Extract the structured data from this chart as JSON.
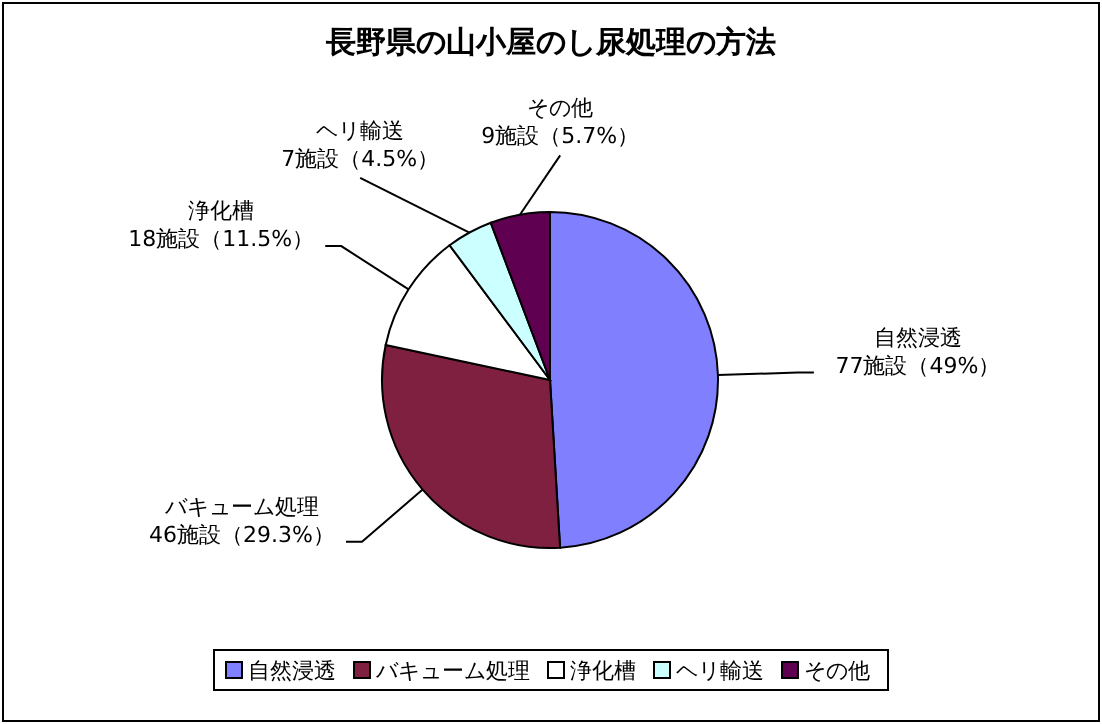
{
  "chart_data": {
    "type": "pie",
    "title": "長野県の山小屋のし尿処理の方法",
    "categories": [
      "自然浸透",
      "バキューム処理",
      "浄化槽",
      "ヘリ輸送",
      "その他"
    ],
    "values": [
      77,
      46,
      18,
      7,
      9
    ],
    "colors": [
      "#8080ff",
      "#802040",
      "#ffffff",
      "#ccffff",
      "#600050"
    ],
    "value_labels": [
      "77施設（49%）",
      "46施設（29.3%）",
      "18施設（11.5%）",
      "7施設（4.5%）",
      "9施設（5.7%）"
    ],
    "legend": "bottom"
  }
}
